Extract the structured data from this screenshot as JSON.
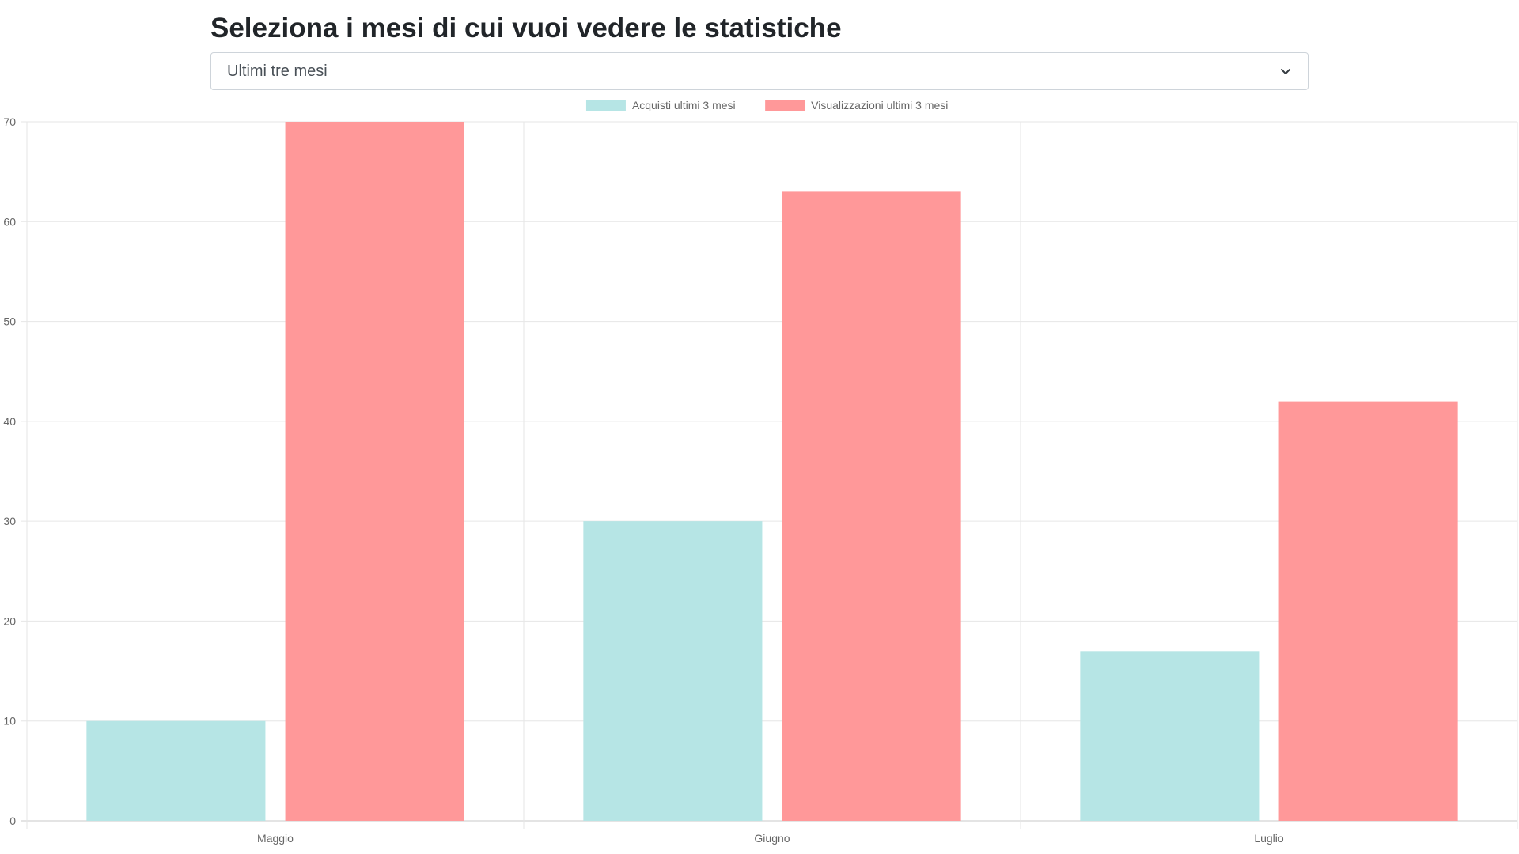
{
  "header": {
    "title": "Seleziona i mesi di cui vuoi vedere le statistiche"
  },
  "month_select": {
    "selected": "Ultimi tre mesi",
    "icon": "chevron-down-icon"
  },
  "chart_data": {
    "type": "bar",
    "categories": [
      "Maggio",
      "Giugno",
      "Luglio"
    ],
    "series": [
      {
        "name": "Acquisti ultimi 3 mesi",
        "values": [
          10,
          30,
          17
        ],
        "color": "#b6e5e5"
      },
      {
        "name": "Visualizzazioni ultimi 3 mesi",
        "values": [
          70,
          63,
          42
        ],
        "color": "#ff9899"
      }
    ],
    "ylim": [
      0,
      70
    ],
    "yticks": [
      0,
      10,
      20,
      30,
      40,
      50,
      60,
      70
    ],
    "grid": true,
    "legend": "top-center",
    "title": "",
    "xlabel": "",
    "ylabel": ""
  }
}
